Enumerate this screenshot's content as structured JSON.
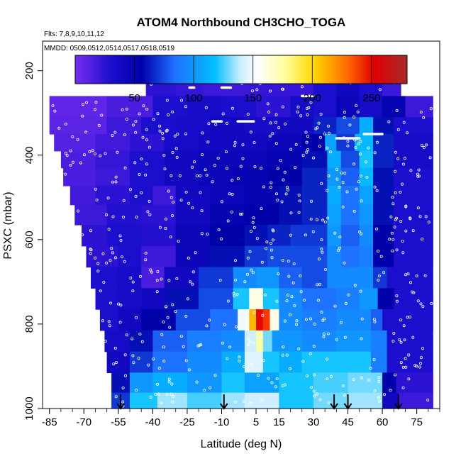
{
  "chart_data": {
    "type": "heatmap",
    "title": "ATOM4 Northbound CH3CHO_TOGA",
    "flights_label": "Flts: 7,8,9,10,11,12",
    "dates_label": "MMDD: 0509,0512,0514,0517,0518,0519",
    "xlabel": "Latitude (deg N)",
    "ylabel": "PSXC (mbar)",
    "xlim": [
      -88,
      85
    ],
    "ylim": [
      1000,
      130
    ],
    "x_ticks": [
      -85,
      -70,
      -55,
      -40,
      -25,
      -10,
      5,
      15,
      30,
      45,
      60,
      75
    ],
    "x_minor_step": 5,
    "y_ticks": [
      200,
      400,
      600,
      800,
      1000
    ],
    "colorbar": {
      "range": [
        0,
        280
      ],
      "ticks": [
        50,
        100,
        150,
        200,
        250
      ],
      "colors": [
        "#7a2df0",
        "#0000a8",
        "#1e90ff",
        "#00bfff",
        "#ffffff",
        "#ffff99",
        "#ffd700",
        "#ff4500",
        "#dd0000",
        "#a52a2a"
      ]
    },
    "arrows_lat": [
      -54,
      -9,
      39,
      45,
      67
    ],
    "marks": {
      "white_points": "yes",
      "bright_white_segments": [
        [
          -48,
          -50,
          100,
          240
        ],
        [
          -24,
          -22,
          30,
          240
        ],
        [
          -10,
          -6,
          145,
          240
        ],
        [
          25,
          30,
          95,
          260
        ],
        [
          -3,
          4,
          190,
          320
        ],
        [
          -14,
          -10,
          70,
          320
        ],
        [
          40,
          50,
          150,
          360
        ],
        [
          52,
          60,
          125,
          350
        ]
      ]
    },
    "profiles": [
      {
        "p": 230,
        "latmin": -43,
        "latmax": 68,
        "cells": [
          [
            -43,
            -30,
            25
          ],
          [
            -30,
            -18,
            22
          ],
          [
            -18,
            2,
            20
          ],
          [
            2,
            30,
            22
          ],
          [
            30,
            40,
            30
          ],
          [
            40,
            50,
            40
          ],
          [
            50,
            60,
            30
          ],
          [
            60,
            68,
            20
          ]
        ]
      },
      {
        "p": 185,
        "latmin": -10,
        "latmax": 43,
        "cells": [
          [
            -10,
            5,
            35
          ],
          [
            5,
            20,
            40
          ],
          [
            20,
            35,
            30
          ],
          [
            35,
            43,
            38
          ]
        ]
      },
      {
        "p": 290,
        "latmin": -85,
        "latmax": 82,
        "cells": [
          [
            -85,
            -60,
            8
          ],
          [
            -60,
            -40,
            15
          ],
          [
            -40,
            -25,
            30
          ],
          [
            -25,
            -10,
            35
          ],
          [
            -10,
            5,
            30
          ],
          [
            5,
            20,
            25
          ],
          [
            20,
            30,
            35
          ],
          [
            30,
            40,
            30
          ],
          [
            40,
            50,
            45
          ],
          [
            50,
            60,
            35
          ],
          [
            60,
            70,
            50
          ],
          [
            70,
            82,
            20
          ]
        ]
      },
      {
        "p": 330,
        "latmin": -85,
        "latmax": 82,
        "cells": [
          [
            -85,
            -60,
            10
          ],
          [
            -60,
            -45,
            20
          ],
          [
            -45,
            -30,
            30
          ],
          [
            -30,
            -15,
            35
          ],
          [
            -15,
            0,
            40
          ],
          [
            0,
            15,
            35
          ],
          [
            15,
            30,
            40
          ],
          [
            30,
            40,
            65
          ],
          [
            40,
            50,
            75
          ],
          [
            50,
            56,
            110
          ],
          [
            56,
            65,
            60
          ],
          [
            65,
            82,
            30
          ]
        ]
      },
      {
        "p": 370,
        "latmin": -83,
        "latmax": 82,
        "cells": [
          [
            -83,
            -65,
            12
          ],
          [
            -65,
            -50,
            18
          ],
          [
            -50,
            -35,
            25
          ],
          [
            -35,
            -20,
            35
          ],
          [
            -20,
            -5,
            38
          ],
          [
            -5,
            10,
            40
          ],
          [
            10,
            25,
            45
          ],
          [
            25,
            35,
            55
          ],
          [
            35,
            40,
            105
          ],
          [
            40,
            48,
            70
          ],
          [
            48,
            56,
            115
          ],
          [
            56,
            65,
            65
          ],
          [
            65,
            82,
            35
          ]
        ]
      },
      {
        "p": 410,
        "latmin": -80,
        "latmax": 82,
        "cells": [
          [
            -80,
            -65,
            15
          ],
          [
            -65,
            -50,
            22
          ],
          [
            -50,
            -35,
            30
          ],
          [
            -35,
            -20,
            40
          ],
          [
            -20,
            -5,
            45
          ],
          [
            -5,
            10,
            45
          ],
          [
            10,
            25,
            50
          ],
          [
            25,
            36,
            60
          ],
          [
            36,
            42,
            110
          ],
          [
            42,
            50,
            75
          ],
          [
            50,
            56,
            120
          ],
          [
            56,
            65,
            65
          ],
          [
            65,
            82,
            35
          ]
        ]
      },
      {
        "p": 450,
        "latmin": -79,
        "latmax": 82,
        "cells": [
          [
            -79,
            -65,
            15
          ],
          [
            -65,
            -50,
            20
          ],
          [
            -50,
            -35,
            30
          ],
          [
            -35,
            -20,
            40
          ],
          [
            -20,
            -5,
            45
          ],
          [
            -5,
            10,
            50
          ],
          [
            10,
            25,
            55
          ],
          [
            25,
            36,
            65
          ],
          [
            36,
            42,
            100
          ],
          [
            42,
            50,
            80
          ],
          [
            50,
            56,
            115
          ],
          [
            56,
            65,
            60
          ],
          [
            65,
            82,
            30
          ]
        ]
      },
      {
        "p": 495,
        "latmin": -76,
        "latmax": 82,
        "cells": [
          [
            -76,
            -65,
            18
          ],
          [
            -65,
            -50,
            25
          ],
          [
            -50,
            -40,
            30
          ],
          [
            -40,
            -30,
            20
          ],
          [
            -30,
            -15,
            40
          ],
          [
            -15,
            0,
            45
          ],
          [
            0,
            15,
            50
          ],
          [
            15,
            25,
            60
          ],
          [
            25,
            36,
            65
          ],
          [
            36,
            42,
            110
          ],
          [
            42,
            50,
            85
          ],
          [
            50,
            56,
            105
          ],
          [
            56,
            65,
            60
          ],
          [
            65,
            82,
            30
          ]
        ]
      },
      {
        "p": 540,
        "latmin": -74,
        "latmax": 82,
        "cells": [
          [
            -74,
            -60,
            20
          ],
          [
            -60,
            -45,
            28
          ],
          [
            -45,
            -30,
            25
          ],
          [
            -30,
            -15,
            40
          ],
          [
            -15,
            0,
            50
          ],
          [
            0,
            15,
            55
          ],
          [
            15,
            25,
            60
          ],
          [
            25,
            36,
            65
          ],
          [
            36,
            42,
            105
          ],
          [
            42,
            50,
            85
          ],
          [
            50,
            56,
            100
          ],
          [
            56,
            65,
            60
          ],
          [
            65,
            82,
            30
          ]
        ]
      },
      {
        "p": 590,
        "latmin": -71,
        "latmax": 82,
        "cells": [
          [
            -71,
            -60,
            25
          ],
          [
            -60,
            -45,
            30
          ],
          [
            -45,
            -30,
            28
          ],
          [
            -30,
            -15,
            45
          ],
          [
            -15,
            0,
            55
          ],
          [
            0,
            10,
            60
          ],
          [
            10,
            20,
            65
          ],
          [
            20,
            36,
            70
          ],
          [
            36,
            42,
            100
          ],
          [
            42,
            50,
            80
          ],
          [
            50,
            56,
            95
          ],
          [
            56,
            65,
            55
          ],
          [
            65,
            82,
            30
          ]
        ]
      },
      {
        "p": 640,
        "latmin": -69,
        "latmax": 82,
        "cells": [
          [
            -69,
            -55,
            25
          ],
          [
            -55,
            -45,
            30
          ],
          [
            -45,
            -30,
            20
          ],
          [
            -30,
            -15,
            45
          ],
          [
            -15,
            0,
            60
          ],
          [
            0,
            10,
            70
          ],
          [
            10,
            20,
            75
          ],
          [
            20,
            36,
            75
          ],
          [
            36,
            42,
            95
          ],
          [
            42,
            50,
            85
          ],
          [
            50,
            56,
            90
          ],
          [
            56,
            65,
            55
          ],
          [
            65,
            82,
            30
          ]
        ]
      },
      {
        "p": 690,
        "latmin": -67,
        "latmax": 82,
        "cells": [
          [
            -67,
            -55,
            30
          ],
          [
            -55,
            -45,
            35
          ],
          [
            -45,
            -35,
            15
          ],
          [
            -35,
            -20,
            40
          ],
          [
            -20,
            -5,
            70
          ],
          [
            -5,
            5,
            95
          ],
          [
            5,
            15,
            100
          ],
          [
            15,
            25,
            80
          ],
          [
            25,
            36,
            75
          ],
          [
            36,
            45,
            95
          ],
          [
            45,
            56,
            95
          ],
          [
            56,
            62,
            70
          ],
          [
            62,
            82,
            30
          ]
        ]
      },
      {
        "p": 740,
        "latmin": -65,
        "latmax": 82,
        "cells": [
          [
            -65,
            -55,
            30
          ],
          [
            -55,
            -45,
            35
          ],
          [
            -45,
            -35,
            40
          ],
          [
            -35,
            -20,
            60
          ],
          [
            -20,
            -5,
            75
          ],
          [
            -5,
            2,
            120
          ],
          [
            2,
            8,
            160
          ],
          [
            8,
            15,
            120
          ],
          [
            15,
            25,
            95
          ],
          [
            25,
            40,
            85
          ],
          [
            40,
            50,
            90
          ],
          [
            50,
            58,
            100
          ],
          [
            58,
            65,
            55
          ],
          [
            65,
            82,
            30
          ]
        ]
      },
      {
        "p": 790,
        "latmin": -63,
        "latmax": 82,
        "cells": [
          [
            -63,
            -55,
            30
          ],
          [
            -55,
            -45,
            40
          ],
          [
            -45,
            -30,
            55
          ],
          [
            -30,
            -15,
            75
          ],
          [
            -15,
            -3,
            85
          ],
          [
            -3,
            2,
            150
          ],
          [
            2,
            5,
            210
          ],
          [
            5,
            8,
            250
          ],
          [
            8,
            11,
            240
          ],
          [
            11,
            15,
            160
          ],
          [
            15,
            25,
            95
          ],
          [
            25,
            40,
            90
          ],
          [
            40,
            55,
            95
          ],
          [
            55,
            60,
            80
          ],
          [
            60,
            82,
            30
          ]
        ]
      },
      {
        "p": 840,
        "latmin": -61,
        "latmax": 82,
        "cells": [
          [
            -61,
            -50,
            35
          ],
          [
            -50,
            -40,
            60
          ],
          [
            -40,
            -25,
            80
          ],
          [
            -25,
            -10,
            90
          ],
          [
            -10,
            0,
            95
          ],
          [
            0,
            5,
            140
          ],
          [
            5,
            8,
            175
          ],
          [
            8,
            12,
            130
          ],
          [
            12,
            25,
            100
          ],
          [
            25,
            40,
            95
          ],
          [
            40,
            55,
            100
          ],
          [
            55,
            62,
            90
          ],
          [
            62,
            82,
            30
          ]
        ]
      },
      {
        "p": 890,
        "latmin": -60,
        "latmax": 82,
        "cells": [
          [
            -60,
            -50,
            40
          ],
          [
            -50,
            -40,
            70
          ],
          [
            -40,
            -25,
            85
          ],
          [
            -25,
            -10,
            95
          ],
          [
            -10,
            0,
            110
          ],
          [
            0,
            8,
            145
          ],
          [
            8,
            15,
            120
          ],
          [
            15,
            25,
            110
          ],
          [
            25,
            40,
            120
          ],
          [
            40,
            55,
            120
          ],
          [
            55,
            62,
            90
          ],
          [
            62,
            82,
            30
          ]
        ]
      },
      {
        "p": 940,
        "latmin": -58,
        "latmax": 82,
        "cells": [
          [
            -58,
            -50,
            60
          ],
          [
            -50,
            -40,
            100
          ],
          [
            -40,
            -25,
            110
          ],
          [
            -25,
            -10,
            100
          ],
          [
            -10,
            0,
            120
          ],
          [
            0,
            15,
            105
          ],
          [
            15,
            30,
            120
          ],
          [
            30,
            45,
            125
          ],
          [
            45,
            60,
            130
          ],
          [
            60,
            66,
            55
          ],
          [
            66,
            82,
            25
          ]
        ]
      },
      {
        "p": 985,
        "latmin": -58,
        "latmax": 82,
        "cells": [
          [
            -58,
            -50,
            70
          ],
          [
            -50,
            -38,
            120
          ],
          [
            -38,
            -25,
            135
          ],
          [
            -25,
            -10,
            125
          ],
          [
            -10,
            0,
            135
          ],
          [
            0,
            15,
            140
          ],
          [
            15,
            30,
            120
          ],
          [
            30,
            45,
            130
          ],
          [
            45,
            60,
            135
          ],
          [
            60,
            67,
            40
          ],
          [
            67,
            82,
            20
          ]
        ]
      }
    ]
  }
}
